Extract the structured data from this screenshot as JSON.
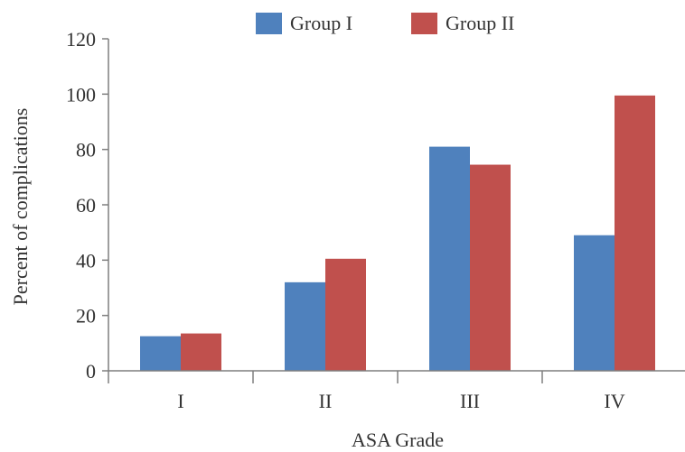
{
  "chart_data": {
    "type": "bar",
    "categories": [
      "I",
      "II",
      "III",
      "IV"
    ],
    "series": [
      {
        "name": "Group I",
        "color": "#4F81BD",
        "values": [
          12.5,
          32,
          81,
          49
        ]
      },
      {
        "name": "Group II",
        "color": "#C0504D",
        "values": [
          13.5,
          40.5,
          74.5,
          99.5
        ]
      }
    ],
    "title": "",
    "xlabel": "ASA Grade",
    "ylabel": "Percent of complications",
    "ylim": [
      0,
      120
    ],
    "yticks": [
      0,
      20,
      40,
      60,
      80,
      100,
      120
    ],
    "grid": false,
    "legend_position": "top"
  }
}
